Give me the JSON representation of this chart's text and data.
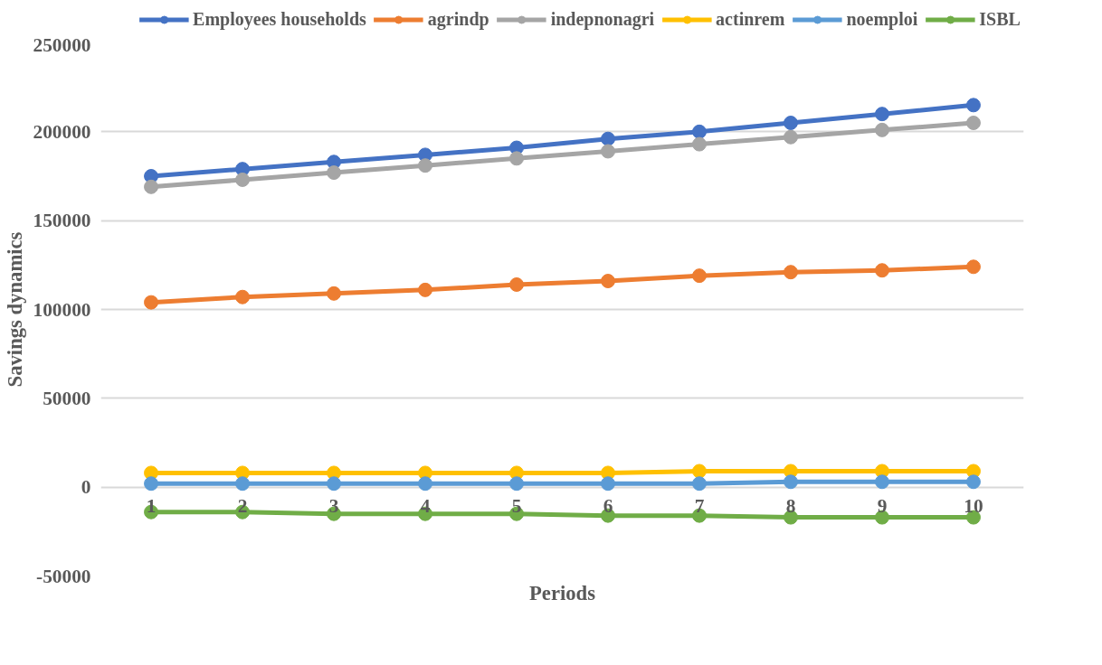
{
  "chart_data": {
    "type": "line",
    "xlabel": "Periods",
    "ylabel": "Savings dynamics",
    "categories": [
      "1",
      "2",
      "3",
      "4",
      "5",
      "6",
      "7",
      "8",
      "9",
      "10"
    ],
    "series": [
      {
        "name": "Employees households",
        "color": "#4472c4",
        "values": [
          175000,
          179000,
          183000,
          187000,
          191000,
          196000,
          200000,
          205000,
          210000,
          215000
        ]
      },
      {
        "name": "agrindp",
        "color": "#ed7d31",
        "values": [
          104000,
          107000,
          109000,
          111000,
          114000,
          116000,
          119000,
          121000,
          122000,
          124000
        ]
      },
      {
        "name": "indepnonagri",
        "color": "#a5a5a5",
        "values": [
          169000,
          173000,
          177000,
          181000,
          185000,
          189000,
          193000,
          197000,
          201000,
          205000
        ]
      },
      {
        "name": "actinrem",
        "color": "#ffc000",
        "values": [
          8000,
          8000,
          8000,
          8000,
          8000,
          8000,
          9000,
          9000,
          9000,
          9000
        ]
      },
      {
        "name": "noemploi",
        "color": "#5b9bd5",
        "values": [
          2000,
          2000,
          2000,
          2000,
          2000,
          2000,
          2000,
          3000,
          3000,
          3000
        ]
      },
      {
        "name": "ISBL",
        "color": "#70ad47",
        "values": [
          -14000,
          -14000,
          -15000,
          -15000,
          -15000,
          -16000,
          -16000,
          -17000,
          -17000,
          -17000
        ]
      }
    ],
    "ylim": [
      -50000,
      250000
    ],
    "yticks": [
      -50000,
      0,
      50000,
      100000,
      150000,
      200000,
      250000
    ],
    "grid": "y",
    "legend": "top",
    "marker": "circle",
    "line_style": "solid"
  }
}
